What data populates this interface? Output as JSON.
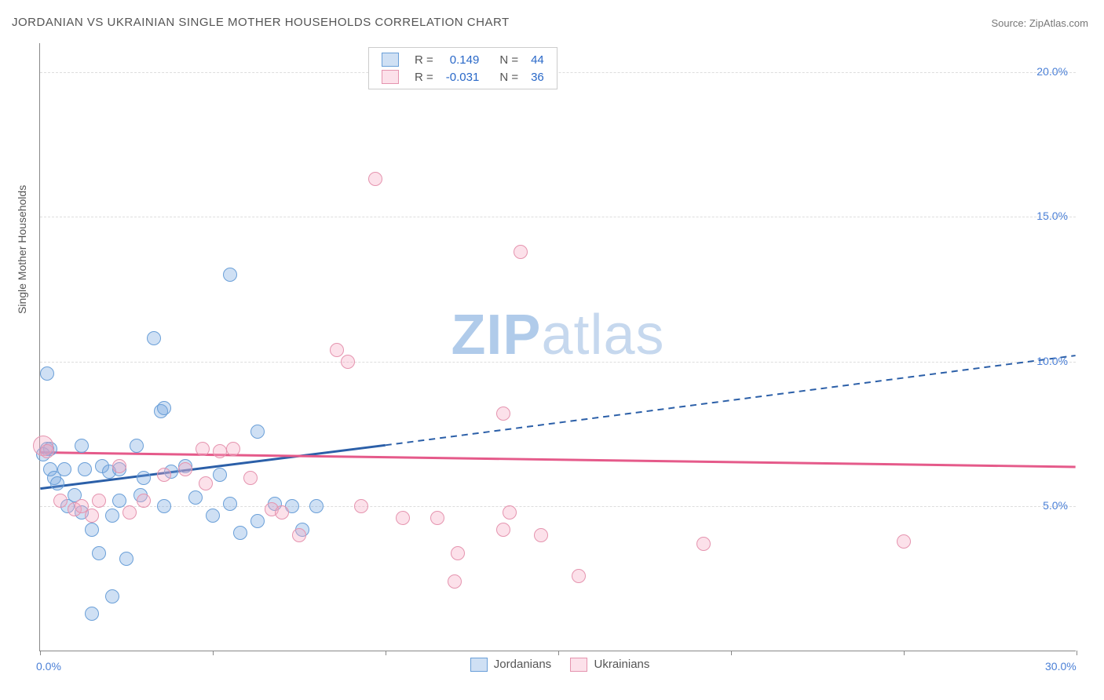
{
  "title": "JORDANIAN VS UKRAINIAN SINGLE MOTHER HOUSEHOLDS CORRELATION CHART",
  "source_prefix": "Source: ",
  "source": "ZipAtlas.com",
  "watermark": {
    "zip": "ZIP",
    "atlas": "atlas"
  },
  "ylabel": "Single Mother Households",
  "chart": {
    "type": "scatter",
    "background_color": "#ffffff",
    "grid_color": "#dddddd",
    "axis_color": "#888888",
    "tick_label_color": "#4a7fd6",
    "xlim": [
      0,
      30
    ],
    "ylim": [
      0,
      21
    ],
    "yticks": [
      5,
      10,
      15,
      20
    ],
    "ytick_labels": [
      "5.0%",
      "10.0%",
      "15.0%",
      "20.0%"
    ],
    "xtick_marks": [
      0,
      5,
      10,
      15,
      20,
      25,
      30
    ],
    "xtick_labels": [
      {
        "pos": 0,
        "text": "0.0%"
      },
      {
        "pos": 30,
        "text": "30.0%"
      }
    ],
    "marker_radius": 9,
    "marker_border_width": 1.5,
    "label_fontsize": 14,
    "title_fontsize": 15
  },
  "series": [
    {
      "name": "Jordanians",
      "fill": "rgba(118,166,224,0.35)",
      "stroke": "#6a9fd8",
      "line_color": "#2b5fa8",
      "r_value": "0.149",
      "n_value": "44",
      "trend_solid": {
        "x1": 0,
        "y1": 5.6,
        "x2": 10,
        "y2": 7.1
      },
      "trend_dashed": {
        "x1": 10,
        "y1": 7.1,
        "x2": 30,
        "y2": 10.2
      },
      "points": [
        {
          "x": 0.2,
          "y": 9.6
        },
        {
          "x": 0.2,
          "y": 7.0
        },
        {
          "x": 0.3,
          "y": 6.3
        },
        {
          "x": 0.4,
          "y": 6.0
        },
        {
          "x": 0.5,
          "y": 5.8
        },
        {
          "x": 0.7,
          "y": 6.3
        },
        {
          "x": 0.8,
          "y": 5.0
        },
        {
          "x": 1.0,
          "y": 5.4
        },
        {
          "x": 1.2,
          "y": 7.1
        },
        {
          "x": 1.2,
          "y": 4.8
        },
        {
          "x": 1.3,
          "y": 6.3
        },
        {
          "x": 1.5,
          "y": 4.2
        },
        {
          "x": 1.5,
          "y": 1.3
        },
        {
          "x": 1.7,
          "y": 3.4
        },
        {
          "x": 1.8,
          "y": 6.4
        },
        {
          "x": 2.0,
          "y": 6.2
        },
        {
          "x": 2.1,
          "y": 4.7
        },
        {
          "x": 2.1,
          "y": 1.9
        },
        {
          "x": 2.3,
          "y": 5.2
        },
        {
          "x": 2.3,
          "y": 6.3
        },
        {
          "x": 2.5,
          "y": 3.2
        },
        {
          "x": 2.8,
          "y": 7.1
        },
        {
          "x": 2.9,
          "y": 5.4
        },
        {
          "x": 3.0,
          "y": 6.0
        },
        {
          "x": 3.3,
          "y": 10.8
        },
        {
          "x": 3.5,
          "y": 8.3
        },
        {
          "x": 3.6,
          "y": 8.4
        },
        {
          "x": 3.6,
          "y": 5.0
        },
        {
          "x": 3.8,
          "y": 6.2
        },
        {
          "x": 4.2,
          "y": 6.4
        },
        {
          "x": 4.5,
          "y": 5.3
        },
        {
          "x": 5.0,
          "y": 4.7
        },
        {
          "x": 5.2,
          "y": 6.1
        },
        {
          "x": 5.5,
          "y": 5.1
        },
        {
          "x": 5.5,
          "y": 13.0
        },
        {
          "x": 5.8,
          "y": 4.1
        },
        {
          "x": 6.3,
          "y": 7.6
        },
        {
          "x": 6.3,
          "y": 4.5
        },
        {
          "x": 6.8,
          "y": 5.1
        },
        {
          "x": 7.3,
          "y": 5.0
        },
        {
          "x": 7.6,
          "y": 4.2
        },
        {
          "x": 8.0,
          "y": 5.0
        },
        {
          "x": 0.3,
          "y": 7.0
        },
        {
          "x": 0.1,
          "y": 6.8
        }
      ]
    },
    {
      "name": "Ukrainians",
      "fill": "rgba(245,170,195,0.35)",
      "stroke": "#e594af",
      "line_color": "#e55a8a",
      "r_value": "-0.031",
      "n_value": "36",
      "trend_solid": {
        "x1": 0,
        "y1": 6.85,
        "x2": 30,
        "y2": 6.35
      },
      "trend_dashed": null,
      "points": [
        {
          "x": 0.1,
          "y": 7.1,
          "r": 13
        },
        {
          "x": 0.2,
          "y": 6.9
        },
        {
          "x": 0.6,
          "y": 5.2
        },
        {
          "x": 1.0,
          "y": 4.9
        },
        {
          "x": 1.2,
          "y": 5.0
        },
        {
          "x": 1.5,
          "y": 4.7
        },
        {
          "x": 1.7,
          "y": 5.2
        },
        {
          "x": 2.3,
          "y": 6.4
        },
        {
          "x": 2.6,
          "y": 4.8
        },
        {
          "x": 3.0,
          "y": 5.2
        },
        {
          "x": 3.6,
          "y": 6.1
        },
        {
          "x": 4.2,
          "y": 6.3
        },
        {
          "x": 4.7,
          "y": 7.0
        },
        {
          "x": 4.8,
          "y": 5.8
        },
        {
          "x": 5.2,
          "y": 6.9
        },
        {
          "x": 5.6,
          "y": 7.0
        },
        {
          "x": 6.1,
          "y": 6.0
        },
        {
          "x": 6.7,
          "y": 4.9
        },
        {
          "x": 7.0,
          "y": 4.8
        },
        {
          "x": 7.5,
          "y": 4.0
        },
        {
          "x": 8.6,
          "y": 10.4
        },
        {
          "x": 8.9,
          "y": 10.0
        },
        {
          "x": 9.3,
          "y": 5.0
        },
        {
          "x": 9.7,
          "y": 16.3
        },
        {
          "x": 10.5,
          "y": 4.6
        },
        {
          "x": 11.5,
          "y": 4.6
        },
        {
          "x": 12.0,
          "y": 2.4
        },
        {
          "x": 12.1,
          "y": 3.4
        },
        {
          "x": 13.4,
          "y": 8.2
        },
        {
          "x": 13.4,
          "y": 4.2
        },
        {
          "x": 13.6,
          "y": 4.8
        },
        {
          "x": 13.9,
          "y": 13.8
        },
        {
          "x": 14.5,
          "y": 4.0
        },
        {
          "x": 15.6,
          "y": 2.6
        },
        {
          "x": 19.2,
          "y": 3.7
        },
        {
          "x": 25.0,
          "y": 3.8
        }
      ]
    }
  ],
  "legend_top": {
    "col_r": "R =",
    "col_n": "N ="
  },
  "legend_bottom_labels": [
    "Jordanians",
    "Ukrainians"
  ]
}
